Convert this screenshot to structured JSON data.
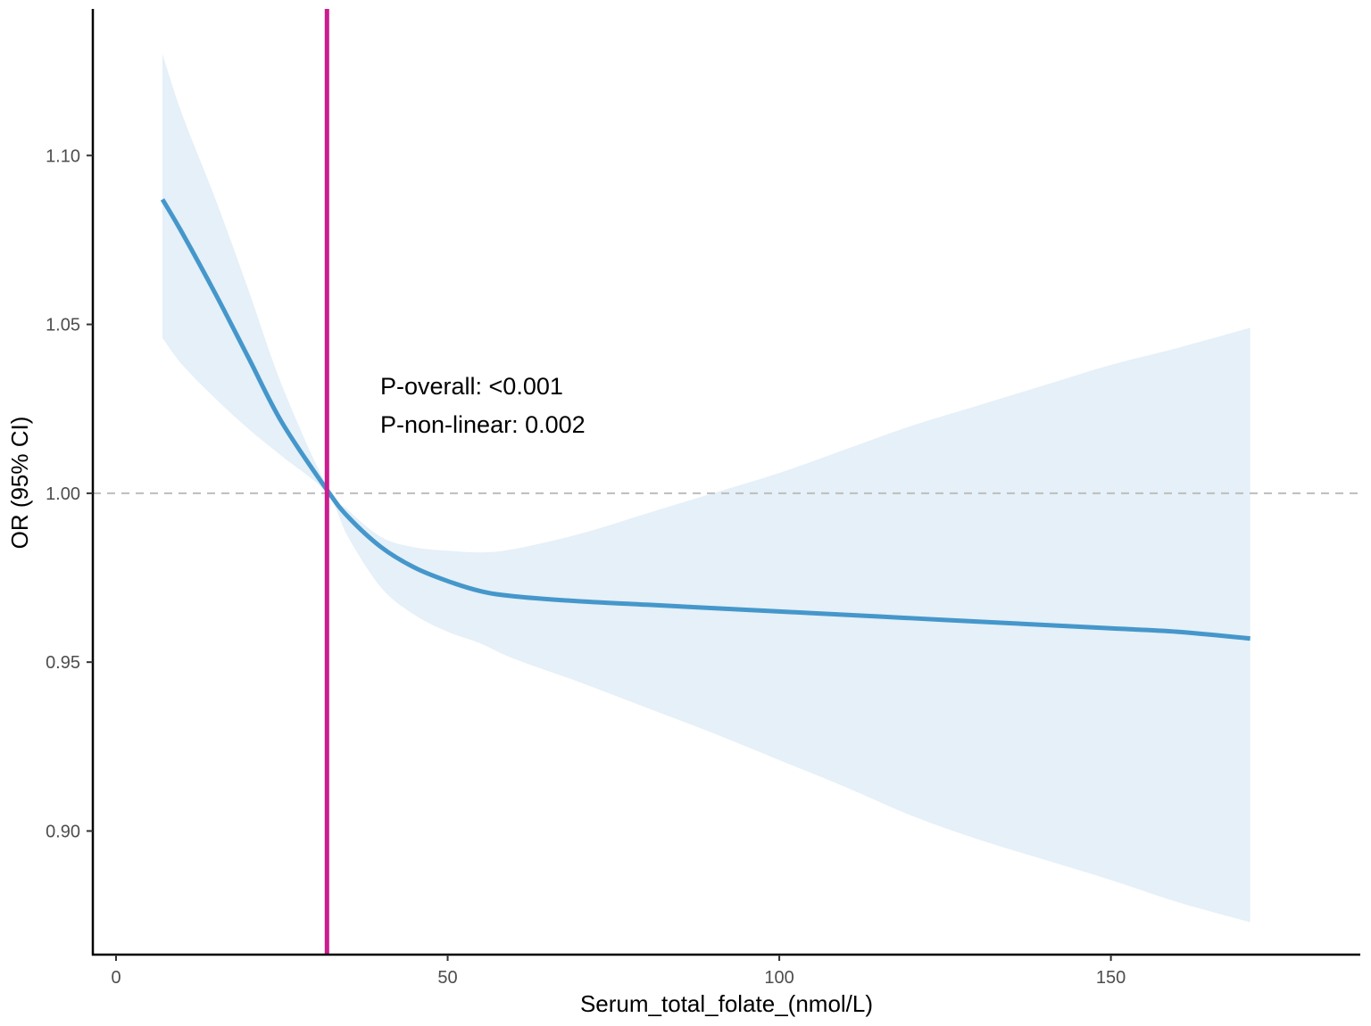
{
  "chart_data": {
    "type": "line",
    "title": "",
    "xlabel": "Serum_total_folate_(nmol/L)",
    "ylabel": "OR (95% CI)",
    "xlim": [
      -3.5,
      187.6
    ],
    "ylim": [
      0.8634,
      1.1434
    ],
    "x_ticks": [
      0,
      50,
      100,
      150
    ],
    "x_tick_labels": [
      "0",
      "50",
      "100",
      "150"
    ],
    "y_ticks": [
      0.9,
      0.95,
      1.0,
      1.05,
      1.1
    ],
    "y_tick_labels": [
      "0.90",
      "0.95",
      "1.00",
      "1.05",
      "1.10"
    ],
    "grid": false,
    "reference_line_y": 1.0,
    "cutoff_x": 31.8,
    "colors": {
      "line": "#4597cb",
      "band": "#e5f0f8",
      "cutoff": "#cc1c8f",
      "reference": "#bdbdbd",
      "axis": "#000000"
    },
    "series": [
      {
        "x": [
          7,
          10,
          15,
          20,
          25,
          31.8,
          35,
          40,
          45,
          50,
          55,
          60,
          70,
          80,
          90,
          100,
          110,
          120,
          130,
          140,
          150,
          160,
          171
        ],
        "y": [
          1.087,
          1.077,
          1.059,
          1.04,
          1.021,
          1.001,
          0.993,
          0.984,
          0.978,
          0.974,
          0.971,
          0.9695,
          0.968,
          0.967,
          0.966,
          0.965,
          0.964,
          0.963,
          0.962,
          0.961,
          0.96,
          0.959,
          0.957
        ],
        "lower": [
          1.046,
          1.038,
          1.028,
          1.019,
          1.011,
          1.0,
          0.987,
          0.972,
          0.964,
          0.959,
          0.9555,
          0.951,
          0.944,
          0.9365,
          0.929,
          0.921,
          0.913,
          0.9045,
          0.8975,
          0.8915,
          0.8855,
          0.879,
          0.873
        ],
        "upper": [
          1.13,
          1.112,
          1.087,
          1.06,
          1.032,
          1.002,
          0.995,
          0.987,
          0.984,
          0.983,
          0.9825,
          0.9835,
          0.988,
          0.994,
          1.0,
          1.006,
          1.013,
          1.02,
          1.026,
          1.032,
          1.038,
          1.043,
          1.049
        ]
      }
    ],
    "annotations": [
      "P-overall: <0.001",
      "P-non-linear: 0.002"
    ]
  }
}
